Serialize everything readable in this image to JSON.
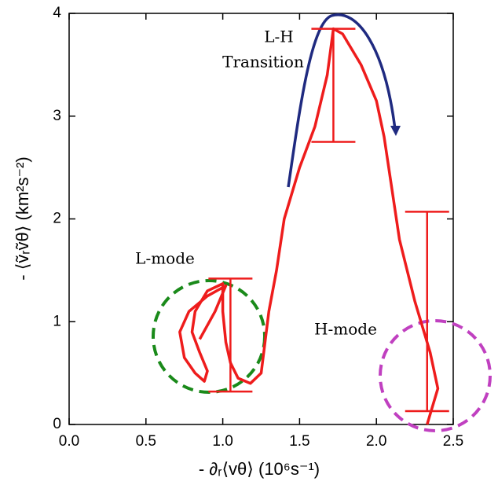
{
  "chart_data": {
    "type": "line",
    "x_label": "- ∂ᵣ⟨vθ⟩  (10⁶s⁻¹)",
    "y_label": "- ⟨ṽᵣṽθ⟩  (km²s⁻²)",
    "xlim": [
      0,
      2.5
    ],
    "ylim": [
      0,
      4
    ],
    "xticks": [
      {
        "value": 0,
        "label": "0.0"
      },
      0.5,
      {
        "value": 1,
        "label": "1.0"
      },
      1.5,
      {
        "value": 2,
        "label": "2.0"
      },
      2.5
    ],
    "yticks": [
      0,
      1,
      2,
      3,
      4
    ],
    "series": [
      {
        "color": "#ee1c1c",
        "x": [
          0.85,
          0.95,
          1.02,
          0.9,
          0.78,
          0.72,
          0.75,
          0.82,
          0.88,
          0.9,
          0.85,
          0.8,
          0.82,
          0.9,
          1.0,
          1.0,
          1.02,
          1.05,
          1.1,
          1.18,
          1.25,
          1.3,
          1.35,
          1.4,
          1.5,
          1.6,
          1.68,
          1.72,
          1.78,
          1.9,
          2.0,
          2.05,
          2.1,
          2.15,
          2.25,
          2.35,
          2.4,
          2.33
        ],
        "values": [
          0.83,
          1.1,
          1.35,
          1.25,
          1.1,
          0.9,
          0.65,
          0.5,
          0.42,
          0.52,
          0.7,
          0.9,
          1.1,
          1.3,
          1.37,
          1.1,
          0.8,
          0.6,
          0.45,
          0.4,
          0.5,
          1.1,
          1.5,
          2.0,
          2.5,
          2.9,
          3.4,
          3.85,
          3.8,
          3.5,
          3.15,
          2.8,
          2.3,
          1.8,
          1.2,
          0.7,
          0.35,
          0.0
        ]
      }
    ],
    "error_bars": [
      {
        "x": 1.05,
        "low": 0.32,
        "high": 1.42
      },
      {
        "x": 1.72,
        "low": 2.75,
        "high": 3.85
      },
      {
        "x": 2.33,
        "low": 0.13,
        "high": 2.07
      }
    ],
    "annotations": [
      {
        "text": "L-H",
        "color": "#1f2a80"
      },
      {
        "text": "Transition",
        "color": "#1f2a80"
      },
      {
        "text": "L-mode",
        "color": "#1a8a1a"
      },
      {
        "text": "H-mode",
        "color": "#c040c0"
      }
    ]
  }
}
